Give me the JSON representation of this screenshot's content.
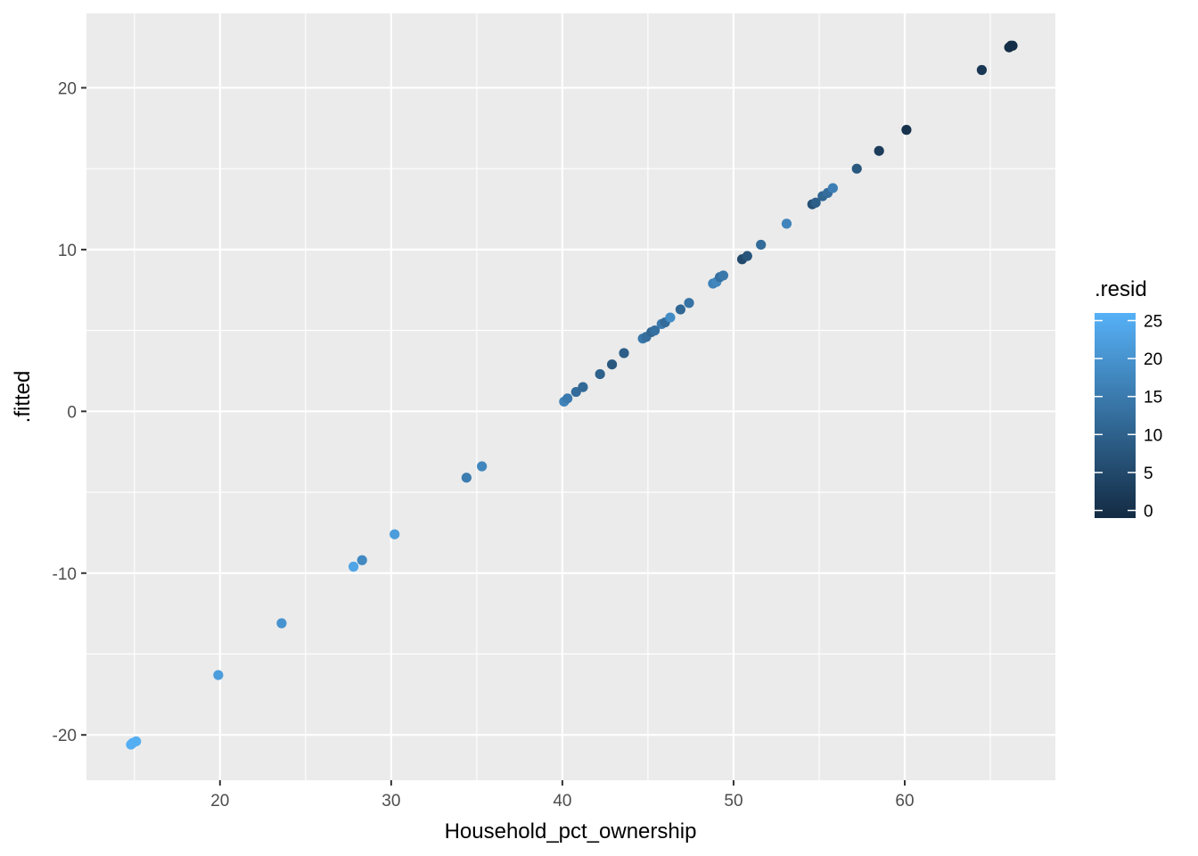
{
  "chart_data": {
    "type": "scatter",
    "title": "",
    "xlabel": "Household_pct_ownership",
    "ylabel": ".fitted",
    "xlim": [
      12.2,
      68.8
    ],
    "ylim": [
      -22.8,
      24.6
    ],
    "xticks": [
      20,
      30,
      40,
      50,
      60
    ],
    "yticks": [
      -20,
      -10,
      0,
      10,
      20
    ],
    "x_tick_labels": [
      "20",
      "30",
      "40",
      "50",
      "60"
    ],
    "y_tick_labels": [
      "-20",
      "-10",
      "0",
      "10",
      "20"
    ],
    "grid": true,
    "color_legend": {
      "title": ".resid",
      "position": "right",
      "range": [
        -1,
        26
      ],
      "ticks": [
        0,
        5,
        10,
        15,
        20,
        25
      ],
      "tick_labels": [
        "0",
        "5",
        "10",
        "15",
        "20",
        "25"
      ],
      "low_color": "#132B43",
      "high_color": "#56B1F7"
    },
    "points": [
      {
        "x": 14.8,
        "y": -20.6,
        "c": 25.5
      },
      {
        "x": 14.9,
        "y": -20.5,
        "c": 25.4
      },
      {
        "x": 15.1,
        "y": -20.4,
        "c": 25.3
      },
      {
        "x": 19.9,
        "y": -16.3,
        "c": 22.0
      },
      {
        "x": 23.6,
        "y": -13.1,
        "c": 20.0
      },
      {
        "x": 27.8,
        "y": -9.6,
        "c": 23.5
      },
      {
        "x": 28.3,
        "y": -9.2,
        "c": 18.0
      },
      {
        "x": 30.2,
        "y": -7.6,
        "c": 22.0
      },
      {
        "x": 34.4,
        "y": -4.1,
        "c": 15.5
      },
      {
        "x": 35.3,
        "y": -3.4,
        "c": 17.5
      },
      {
        "x": 40.1,
        "y": 0.6,
        "c": 17.0
      },
      {
        "x": 40.3,
        "y": 0.8,
        "c": 15.0
      },
      {
        "x": 40.8,
        "y": 1.2,
        "c": 12.0
      },
      {
        "x": 41.2,
        "y": 1.5,
        "c": 11.5
      },
      {
        "x": 42.2,
        "y": 2.3,
        "c": 10.0
      },
      {
        "x": 42.9,
        "y": 2.9,
        "c": 8.0
      },
      {
        "x": 43.6,
        "y": 3.6,
        "c": 9.5
      },
      {
        "x": 44.7,
        "y": 4.5,
        "c": 14.5
      },
      {
        "x": 44.9,
        "y": 4.6,
        "c": 12.5
      },
      {
        "x": 45.2,
        "y": 4.9,
        "c": 11.0
      },
      {
        "x": 45.4,
        "y": 5.0,
        "c": 13.0
      },
      {
        "x": 45.8,
        "y": 5.4,
        "c": 15.0
      },
      {
        "x": 46.0,
        "y": 5.5,
        "c": 12.0
      },
      {
        "x": 46.3,
        "y": 5.8,
        "c": 18.5
      },
      {
        "x": 46.9,
        "y": 6.3,
        "c": 11.0
      },
      {
        "x": 47.4,
        "y": 6.7,
        "c": 13.5
      },
      {
        "x": 48.8,
        "y": 7.9,
        "c": 16.5
      },
      {
        "x": 49.0,
        "y": 8.0,
        "c": 17.5
      },
      {
        "x": 49.2,
        "y": 8.3,
        "c": 13.0
      },
      {
        "x": 49.4,
        "y": 8.4,
        "c": 14.5
      },
      {
        "x": 50.5,
        "y": 9.4,
        "c": 5.0
      },
      {
        "x": 50.8,
        "y": 9.6,
        "c": 7.5
      },
      {
        "x": 51.6,
        "y": 10.3,
        "c": 12.0
      },
      {
        "x": 53.1,
        "y": 11.6,
        "c": 17.0
      },
      {
        "x": 54.6,
        "y": 12.8,
        "c": 6.5
      },
      {
        "x": 54.8,
        "y": 12.9,
        "c": 9.5
      },
      {
        "x": 55.2,
        "y": 13.3,
        "c": 11.0
      },
      {
        "x": 55.5,
        "y": 13.5,
        "c": 12.5
      },
      {
        "x": 55.8,
        "y": 13.8,
        "c": 16.0
      },
      {
        "x": 57.2,
        "y": 15.0,
        "c": 8.0
      },
      {
        "x": 58.5,
        "y": 16.1,
        "c": 2.5
      },
      {
        "x": 60.1,
        "y": 17.4,
        "c": 0.5
      },
      {
        "x": 64.5,
        "y": 21.1,
        "c": 1.5
      },
      {
        "x": 66.1,
        "y": 22.5,
        "c": -0.5
      },
      {
        "x": 66.2,
        "y": 22.6,
        "c": 0.0
      },
      {
        "x": 66.3,
        "y": 22.6,
        "c": -0.3
      }
    ]
  }
}
